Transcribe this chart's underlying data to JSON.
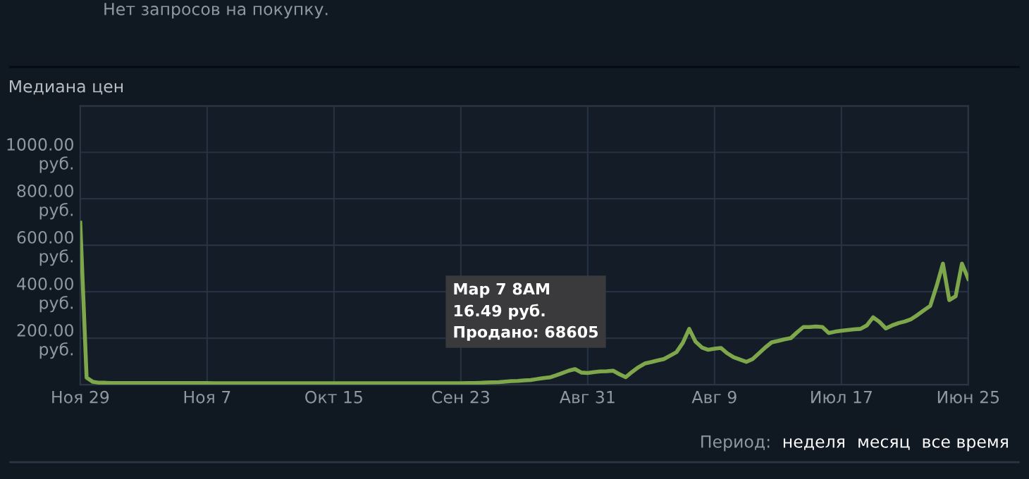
{
  "chart_data": {
    "type": "line",
    "title": "Медиана цен",
    "categories": [
      "Ноя 29",
      null,
      null,
      null,
      null,
      null,
      null,
      null,
      null,
      null,
      null,
      null,
      null,
      null,
      null,
      null,
      null,
      null,
      null,
      null,
      "Ноя 7",
      null,
      null,
      null,
      null,
      null,
      null,
      null,
      null,
      null,
      null,
      null,
      null,
      null,
      null,
      null,
      null,
      null,
      null,
      null,
      "Окт 15",
      null,
      null,
      null,
      null,
      null,
      null,
      null,
      null,
      null,
      null,
      null,
      null,
      null,
      null,
      null,
      null,
      null,
      null,
      null,
      "Сен 23",
      null,
      null,
      null,
      null,
      null,
      null,
      null,
      null,
      null,
      null,
      null,
      null,
      null,
      null,
      null,
      null,
      null,
      null,
      null,
      "Авг 31",
      null,
      null,
      null,
      null,
      null,
      null,
      null,
      null,
      null,
      null,
      null,
      null,
      null,
      null,
      null,
      null,
      null,
      null,
      null,
      "Авг 9",
      null,
      null,
      null,
      null,
      null,
      null,
      null,
      null,
      null,
      null,
      null,
      null,
      null,
      null,
      null,
      null,
      null,
      null,
      null,
      "Июл 17",
      null,
      null,
      null,
      null,
      null,
      null,
      null,
      null,
      null,
      null,
      null,
      null,
      null,
      null,
      null,
      null,
      null,
      null,
      null,
      "Июн 25"
    ],
    "series": [
      {
        "color": "#7ea64a",
        "values": [
          697,
          30,
          12,
          8,
          8,
          7,
          7,
          7,
          7,
          7,
          7,
          7,
          7,
          7,
          7,
          7,
          7,
          7,
          7,
          7,
          7,
          6,
          6,
          6,
          6,
          6,
          6,
          6,
          6,
          6,
          6,
          6,
          6,
          6,
          6,
          6,
          6,
          6,
          6,
          6,
          6,
          6,
          6,
          6,
          6,
          6,
          6,
          6,
          6,
          6,
          6,
          6,
          6,
          6,
          6,
          6,
          6,
          6,
          6,
          6,
          6,
          7,
          7,
          8,
          9,
          10,
          11,
          13,
          15,
          16,
          18,
          20,
          24,
          28,
          31,
          40,
          50,
          60,
          67,
          52,
          50,
          54,
          57,
          58,
          60,
          45,
          32,
          55,
          75,
          91,
          97,
          104,
          110,
          125,
          140,
          180,
          240,
          185,
          160,
          150,
          155,
          158,
          135,
          118,
          108,
          98,
          110,
          135,
          160,
          182,
          188,
          195,
          200,
          225,
          248,
          248,
          250,
          248,
          222,
          228,
          232,
          235,
          238,
          240,
          255,
          290,
          270,
          242,
          255,
          265,
          272,
          282,
          300,
          320,
          339,
          424,
          521,
          364,
          380,
          521,
          455
        ]
      }
    ],
    "ylim": [
      0,
      1200
    ],
    "yticks": [
      {
        "value": 0,
        "label": null
      },
      {
        "value": 200,
        "label": "200.00\nруб."
      },
      {
        "value": 400,
        "label": "400.00\nруб."
      },
      {
        "value": 600,
        "label": "600.00\nруб."
      },
      {
        "value": 800,
        "label": "800.00\nруб."
      },
      {
        "value": 1000,
        "label": "1000.00\nруб."
      },
      {
        "value": 1200,
        "label": null
      }
    ],
    "grid": true,
    "annotations": [
      "Мар 7 8AM\n16.49 руб.\nПродано: 68605",
      "Нет запросов на покупку.",
      "Период:",
      "неделя",
      "месяц",
      "все время"
    ]
  }
}
